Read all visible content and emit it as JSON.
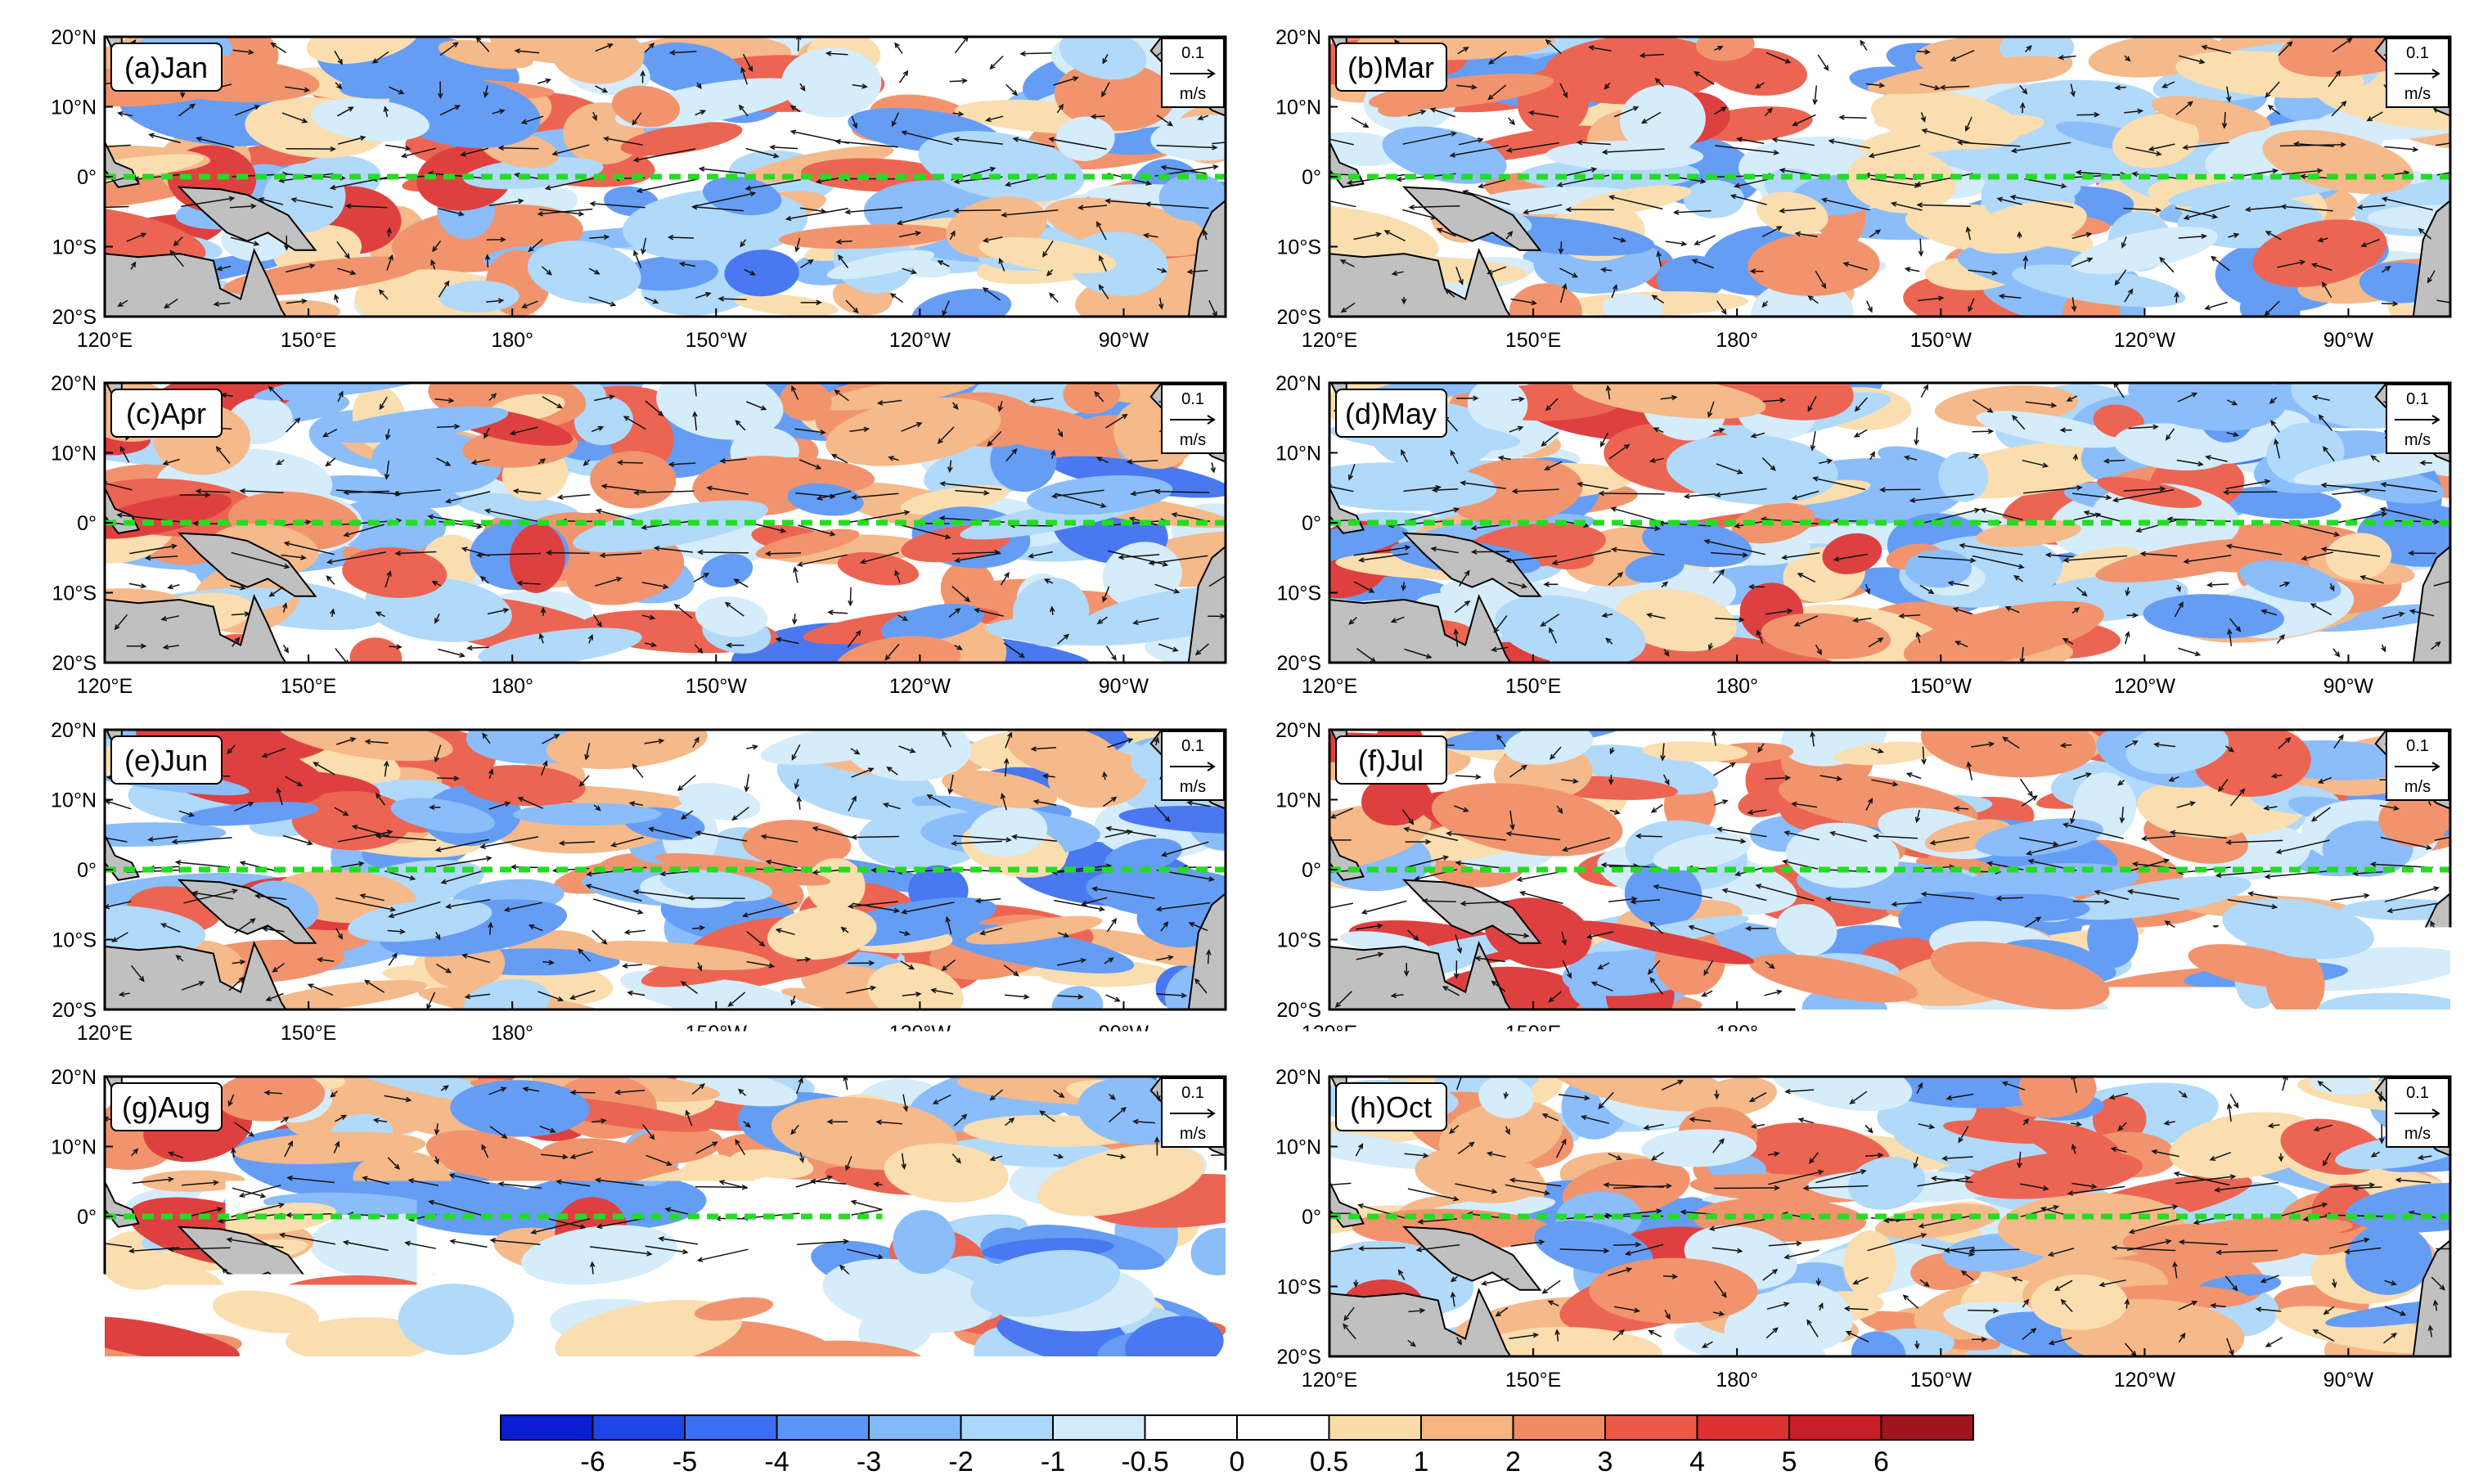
{
  "figure": {
    "panels": [
      {
        "label": "(a)Jan"
      },
      {
        "label": "(b)Mar"
      },
      {
        "label": "(c)Apr"
      },
      {
        "label": "(d)May"
      },
      {
        "label": "(e)Jun"
      },
      {
        "label": "(f)Jul"
      },
      {
        "label": "(g)Aug"
      },
      {
        "label": "(h)Oct"
      }
    ],
    "lon_ticks": [
      "120°E",
      "150°E",
      "180°",
      "150°W",
      "120°W",
      "90°W"
    ],
    "lat_ticks": [
      "20°N",
      "10°N",
      "0°",
      "10°S",
      "20°S"
    ],
    "reference_vector": {
      "value": "0.1",
      "unit": "m/s"
    },
    "equator_line_color": "#22dd22",
    "colorbar": {
      "tick_labels": [
        "-6",
        "-5",
        "-4",
        "-3",
        "-2",
        "-1",
        "-0.5",
        "0",
        "0.5",
        "1",
        "2",
        "3",
        "4",
        "5",
        "6"
      ],
      "colors": [
        "#0a1ed2",
        "#1e46e6",
        "#3c6ef0",
        "#5a96f5",
        "#82b9fa",
        "#aad7fa",
        "#d2ebfa",
        "#ffffff",
        "#ffffff",
        "#fadcaa",
        "#f5b482",
        "#f08c64",
        "#eb5a46",
        "#dc3232",
        "#c81e28",
        "#a0141e"
      ]
    }
  }
}
